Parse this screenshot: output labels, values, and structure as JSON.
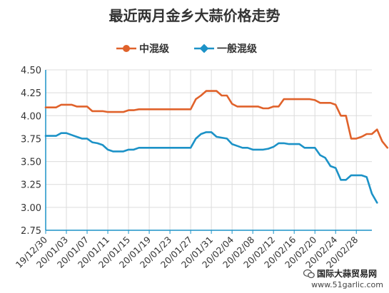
{
  "chart_data": {
    "type": "line",
    "title": "最近两月金乡大蒜价格走势",
    "legend_position": "top-center",
    "grid": true,
    "ylim": [
      2.75,
      4.5
    ],
    "yticks": [
      "4.50",
      "4.25",
      "4.00",
      "3.75",
      "3.50",
      "3.25",
      "3.00",
      "2.75"
    ],
    "xtick_labels": [
      "19/12/30",
      "20/01/03",
      "20/01/07",
      "20/01/11",
      "20/01/15",
      "20/01/19",
      "20/01/23",
      "20/01/27",
      "20/01/31",
      "20/02/04",
      "20/02/08",
      "20/02/12",
      "20/02/16",
      "20/02/20",
      "20/02/24",
      "20/02/28"
    ],
    "xtick_every": 4,
    "series": [
      {
        "name": "中混级",
        "color": "#e0622b",
        "values": [
          4.09,
          4.09,
          4.09,
          4.12,
          4.12,
          4.12,
          4.1,
          4.1,
          4.1,
          4.05,
          4.05,
          4.05,
          4.04,
          4.04,
          4.04,
          4.04,
          4.06,
          4.06,
          4.07,
          4.07,
          4.07,
          4.07,
          4.07,
          4.07,
          4.07,
          4.07,
          4.07,
          4.07,
          4.07,
          4.18,
          4.22,
          4.27,
          4.27,
          4.27,
          4.22,
          4.22,
          4.13,
          4.1,
          4.1,
          4.1,
          4.1,
          4.1,
          4.08,
          4.08,
          4.1,
          4.1,
          4.18,
          4.18,
          4.18,
          4.18,
          4.18,
          4.18,
          4.17,
          4.14,
          4.14,
          4.14,
          4.12,
          4.0,
          4.0,
          3.75,
          3.75,
          3.77,
          3.8,
          3.8,
          3.85,
          3.72,
          3.65
        ]
      },
      {
        "name": "一般混级",
        "color": "#1c92c7",
        "values": [
          3.78,
          3.78,
          3.78,
          3.81,
          3.81,
          3.79,
          3.77,
          3.75,
          3.75,
          3.71,
          3.7,
          3.68,
          3.63,
          3.61,
          3.61,
          3.61,
          3.63,
          3.63,
          3.65,
          3.65,
          3.65,
          3.65,
          3.65,
          3.65,
          3.65,
          3.65,
          3.65,
          3.65,
          3.65,
          3.75,
          3.8,
          3.82,
          3.82,
          3.77,
          3.76,
          3.75,
          3.69,
          3.67,
          3.65,
          3.65,
          3.63,
          3.63,
          3.63,
          3.64,
          3.66,
          3.7,
          3.7,
          3.69,
          3.69,
          3.69,
          3.65,
          3.65,
          3.65,
          3.57,
          3.54,
          3.45,
          3.43,
          3.3,
          3.3,
          3.35,
          3.35,
          3.35,
          3.33,
          3.15,
          3.05
        ]
      }
    ]
  },
  "watermark": {
    "name": "国际大蒜贸易网",
    "url": "www.51garlic.com"
  }
}
